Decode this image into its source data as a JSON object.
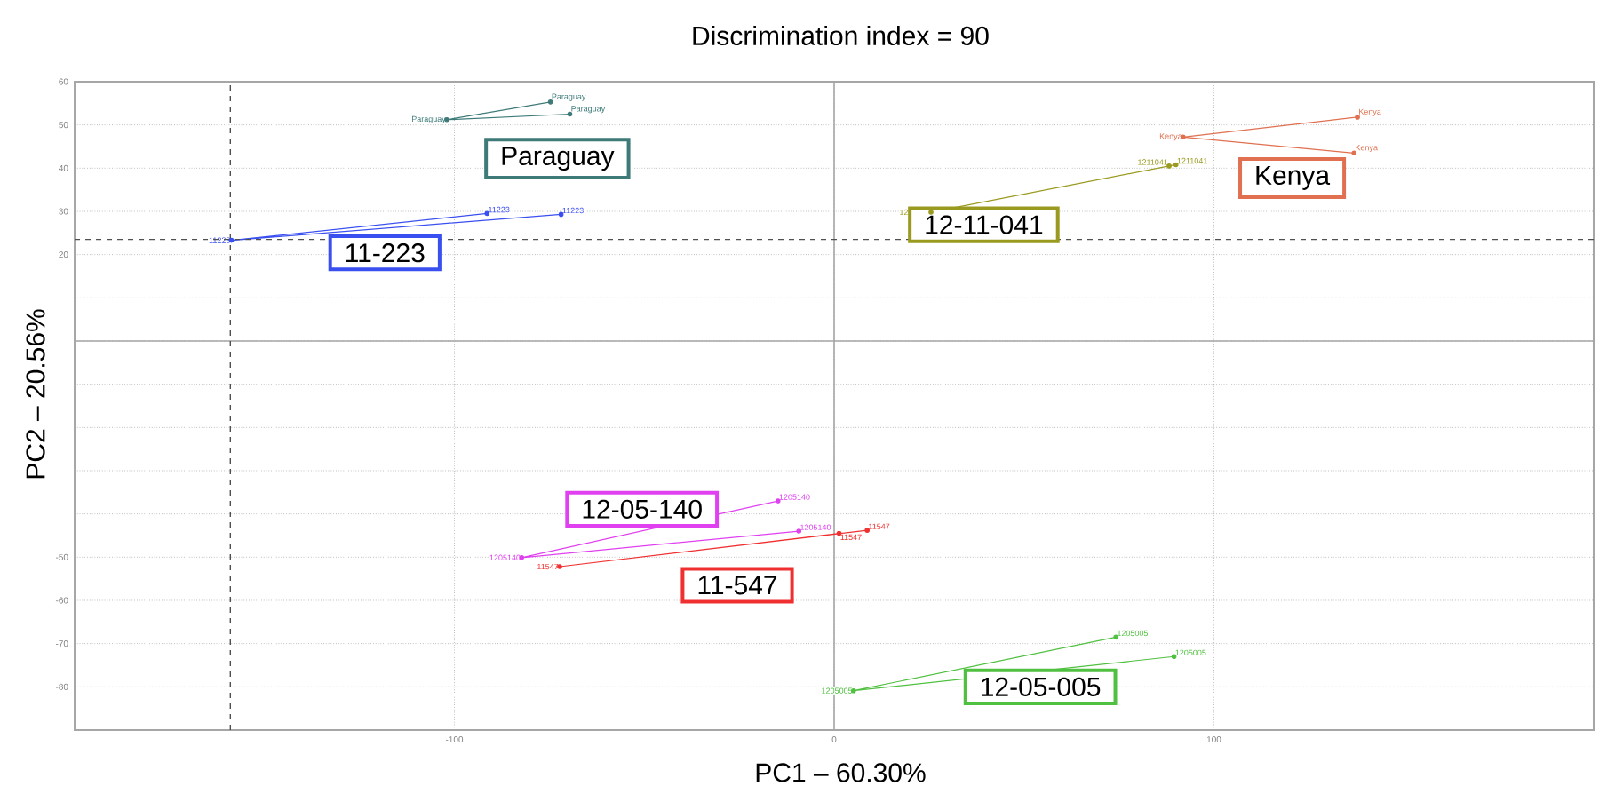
{
  "chart_data": {
    "type": "line",
    "title": "Discrimination index = 90",
    "xlabel": "PC1 – 60.30%",
    "ylabel": "PC2 – 20.56%",
    "xlim": [
      -200,
      200
    ],
    "ylim": [
      -90,
      60
    ],
    "xticks": [
      {
        "value": -200,
        "label": null
      },
      -100,
      0,
      100,
      {
        "value": 200,
        "label": null
      }
    ],
    "yticks": [
      -80,
      -70,
      -60,
      -50,
      {
        "value": -40,
        "label": null
      },
      {
        "value": -30,
        "label": null
      },
      {
        "value": -20,
        "label": null
      },
      {
        "value": -10,
        "label": null
      },
      {
        "value": 0,
        "label": null
      },
      {
        "value": 10,
        "label": null
      },
      20,
      30,
      40,
      50,
      60
    ],
    "grid": true,
    "marker": "circle",
    "line_style": "solid",
    "ref_lines": [
      {
        "axis": "x",
        "value": -159,
        "label": null,
        "color": "#505050",
        "line_style": "dashed"
      },
      {
        "axis": "y",
        "value": 23.5,
        "label": null,
        "color": "#505050",
        "line_style": "dashed"
      }
    ],
    "series": [
      {
        "name": "Paraguay",
        "color": "#3d7a78",
        "x": [
          -74.7,
          -102,
          -69.6
        ],
        "values": [
          55.3,
          51.2,
          52.5
        ]
      },
      {
        "name": "11223",
        "color": "#3a4ff0",
        "x": [
          -91.4,
          -158.7,
          -71.9
        ],
        "values": [
          29.5,
          23.3,
          29.3
        ]
      },
      {
        "name": "1211041",
        "color": "#9a9a20",
        "x": [
          88.2,
          25.5,
          90
        ],
        "values": [
          40.5,
          29.8,
          40.8
        ]
      },
      {
        "name": "Kenya",
        "color": "#e07050",
        "x": [
          137.8,
          91.9,
          136.9
        ],
        "values": [
          51.8,
          47.2,
          43.5
        ]
      },
      {
        "name": "1205140",
        "color": "#e040f0",
        "x": [
          -14.8,
          -82.3,
          -9.3
        ],
        "values": [
          -37,
          -50.1,
          -44
        ]
      },
      {
        "name": "11547",
        "color": "#f03030",
        "x": [
          1.3,
          -72.3,
          8.7
        ],
        "values": [
          -44.5,
          -52.2,
          -43.8
        ]
      },
      {
        "name": "1205005",
        "color": "#50c040",
        "x": [
          74.2,
          5.1,
          89.5
        ],
        "values": [
          -68.5,
          -80.9,
          -73
        ]
      }
    ],
    "annotations": [
      "Paraguay",
      "11-223",
      "12-11-041",
      "Kenya",
      "12-05-140",
      "11-547",
      "12-05-005"
    ]
  }
}
